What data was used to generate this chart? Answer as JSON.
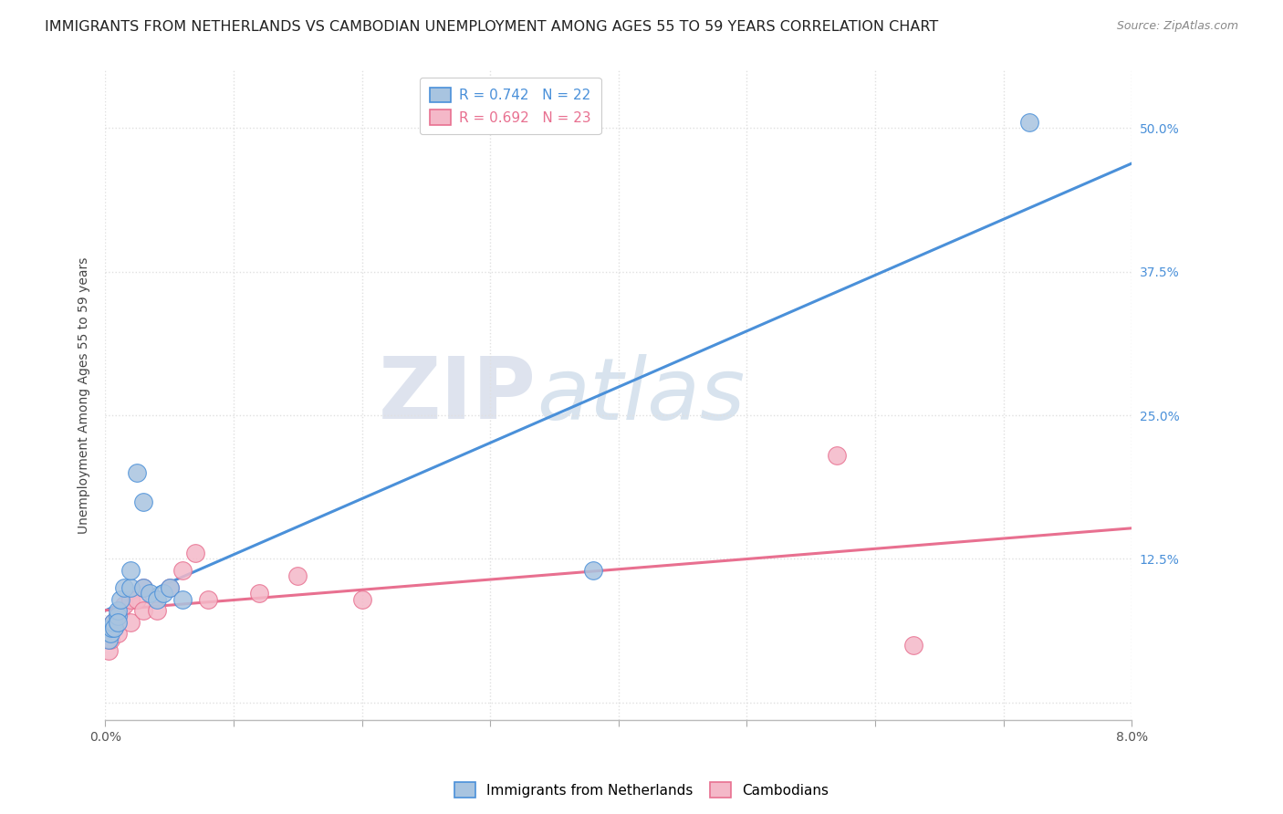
{
  "title": "IMMIGRANTS FROM NETHERLANDS VS CAMBODIAN UNEMPLOYMENT AMONG AGES 55 TO 59 YEARS CORRELATION CHART",
  "source": "Source: ZipAtlas.com",
  "ylabel": "Unemployment Among Ages 55 to 59 years",
  "xlim": [
    0.0,
    0.08
  ],
  "ylim": [
    -0.015,
    0.55
  ],
  "yticks": [
    0.0,
    0.125,
    0.25,
    0.375,
    0.5
  ],
  "xticks": [
    0.0,
    0.01,
    0.02,
    0.03,
    0.04,
    0.05,
    0.06,
    0.07,
    0.08
  ],
  "xtick_labels": [
    "0.0%",
    "",
    "",
    "",
    "",
    "",
    "",
    "",
    "8.0%"
  ],
  "blue_scatter_x": [
    0.0003,
    0.0004,
    0.0005,
    0.0006,
    0.0007,
    0.001,
    0.001,
    0.001,
    0.0012,
    0.0015,
    0.002,
    0.002,
    0.0025,
    0.003,
    0.003,
    0.0035,
    0.004,
    0.0045,
    0.005,
    0.006,
    0.038,
    0.072
  ],
  "blue_scatter_y": [
    0.055,
    0.06,
    0.065,
    0.07,
    0.065,
    0.075,
    0.08,
    0.07,
    0.09,
    0.1,
    0.1,
    0.115,
    0.2,
    0.175,
    0.1,
    0.095,
    0.09,
    0.095,
    0.1,
    0.09,
    0.115,
    0.505
  ],
  "pink_scatter_x": [
    0.0003,
    0.0004,
    0.0006,
    0.0007,
    0.001,
    0.001,
    0.0012,
    0.0015,
    0.002,
    0.002,
    0.0025,
    0.003,
    0.003,
    0.004,
    0.005,
    0.006,
    0.007,
    0.008,
    0.012,
    0.015,
    0.02,
    0.057,
    0.063
  ],
  "pink_scatter_y": [
    0.045,
    0.055,
    0.07,
    0.065,
    0.06,
    0.075,
    0.08,
    0.085,
    0.07,
    0.09,
    0.09,
    0.08,
    0.1,
    0.08,
    0.1,
    0.115,
    0.13,
    0.09,
    0.095,
    0.11,
    0.09,
    0.215,
    0.05
  ],
  "blue_color": "#a8c4e0",
  "pink_color": "#f4b8c8",
  "blue_line_color": "#4a90d9",
  "pink_line_color": "#e87090",
  "blue_R": 0.742,
  "blue_N": 22,
  "pink_R": 0.692,
  "pink_N": 23,
  "watermark_zip": "ZIP",
  "watermark_atlas": "atlas",
  "background_color": "#ffffff",
  "grid_color": "#e0e0e0",
  "title_fontsize": 11.5,
  "axis_label_fontsize": 10,
  "tick_fontsize": 10,
  "legend_fontsize": 11,
  "source_fontsize": 9
}
